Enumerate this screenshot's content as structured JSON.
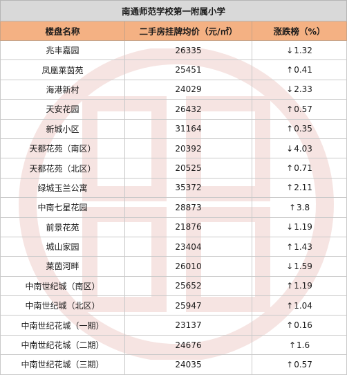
{
  "title": "南通师范学校第一附属小学",
  "headers": [
    "楼盘名称",
    "二手房挂牌均价（元/㎡）",
    "涨跌榜（%）"
  ],
  "rows": [
    {
      "name": "兆丰嘉园",
      "price": "26335",
      "dir": "↓",
      "pct": "1.32"
    },
    {
      "name": "凤凰莱茵苑",
      "price": "25451",
      "dir": "↑",
      "pct": "0.41"
    },
    {
      "name": "海港新村",
      "price": "24029",
      "dir": "↓",
      "pct": "2.33"
    },
    {
      "name": "天安花园",
      "price": "26432",
      "dir": "↑",
      "pct": "0.57"
    },
    {
      "name": "新城小区",
      "price": "31164",
      "dir": "↑",
      "pct": "0.35"
    },
    {
      "name": "天都花苑（南区）",
      "price": "20392",
      "dir": "↓",
      "pct": "4.03"
    },
    {
      "name": "天都花苑（北区）",
      "price": "20525",
      "dir": "↑",
      "pct": "0.71"
    },
    {
      "name": "绿城玉兰公寓",
      "price": "35372",
      "dir": "↑",
      "pct": "2.11"
    },
    {
      "name": "中南七星花园",
      "price": "28873",
      "dir": "↑",
      "pct": "3.8"
    },
    {
      "name": "前景花苑",
      "price": "21876",
      "dir": "↓",
      "pct": "1.19"
    },
    {
      "name": "城山家园",
      "price": "23404",
      "dir": "↑",
      "pct": "1.43"
    },
    {
      "name": "莱茵河畔",
      "price": "26010",
      "dir": "↓",
      "pct": "1.59"
    },
    {
      "name": "中南世纪城（南区）",
      "price": "25652",
      "dir": "↑",
      "pct": "1.19"
    },
    {
      "name": "中南世纪城（北区）",
      "price": "25947",
      "dir": "↑",
      "pct": "1.04"
    },
    {
      "name": "中南世纪花城（一期）",
      "price": "23137",
      "dir": "↑",
      "pct": "0.16"
    },
    {
      "name": "中南世纪花城（二期）",
      "price": "24676",
      "dir": "↑",
      "pct": "1.6"
    },
    {
      "name": "中南世纪花城（三期）",
      "price": "24035",
      "dir": "↑",
      "pct": "0.57"
    }
  ],
  "colors": {
    "title_bg": "#d9d9d9",
    "header_bg": "#f4b183",
    "watermark": "#c0392b"
  }
}
